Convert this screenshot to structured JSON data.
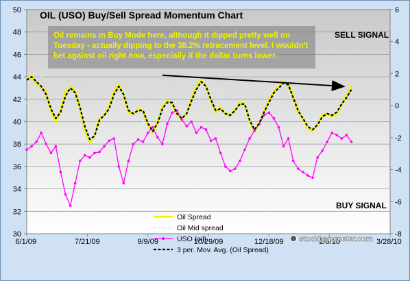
{
  "chart_data": {
    "type": "line",
    "title": "OIL (USO) Buy/Sell Spread Momentum Chart",
    "annotation_box": "Oil remains in Buy Mode here, although it dipped pretty well on Tuesday - actually dipping to the 38.2% retracement level.  I wouldn't bet against oil right now, especially if the dollar turns lower.",
    "annotation_lines": [
      "Oil remains in Buy Mode here, although it dipped pretty well on",
      "Tuesday - actually dipping to the 38.2% retracement level.  I wouldn't",
      "bet against oil right now, especially if the dollar turns lower."
    ],
    "sell_signal_label": "SELL SIGNAL",
    "buy_signal_label": "BUY SIGNAL",
    "watermark": "stockbarometer.com",
    "x_tick_labels": [
      "6/1/09",
      "7/21/09",
      "9/9/09",
      "10/29/09",
      "12/18/09",
      "2/6/10",
      "3/28/10"
    ],
    "x_range_days": [
      0,
      300
    ],
    "y_left_ticks": [
      "30",
      "32",
      "34",
      "36",
      "38",
      "40",
      "42",
      "44",
      "46",
      "48",
      "50"
    ],
    "y_left_range": [
      30,
      50
    ],
    "y_right_ticks": [
      "6",
      "4",
      "2",
      "0",
      "-2",
      "-4",
      "-6",
      "-8"
    ],
    "y_right_range": [
      -8,
      6
    ],
    "legend_position": "bottom-center",
    "grid": "horizontal",
    "series": [
      {
        "name": "Oil Spread",
        "axis": "right",
        "color": "#f2f200",
        "style": "solid",
        "x": [
          0,
          4,
          8,
          12,
          16,
          20,
          24,
          28,
          32,
          36,
          40,
          44,
          48,
          52,
          56,
          60,
          64,
          68,
          72,
          76,
          80,
          84,
          88,
          92,
          96,
          100,
          104,
          108,
          112,
          116,
          120,
          124,
          128,
          132,
          136,
          140,
          144,
          148,
          152,
          156,
          160,
          164,
          168,
          172,
          176,
          180,
          184,
          188,
          192,
          196,
          200,
          204,
          208,
          212,
          216,
          220,
          224,
          228,
          232,
          236,
          240,
          244,
          248,
          252,
          256,
          260,
          264,
          268
        ],
        "y": [
          1.7,
          1.9,
          1.3,
          1.2,
          0.8,
          -0.3,
          -1.0,
          -0.3,
          0.9,
          1.2,
          0.9,
          -0.2,
          -1.5,
          -2.3,
          -1.9,
          -0.8,
          -0.6,
          -0.1,
          0.9,
          1.3,
          0.7,
          -0.4,
          -0.5,
          -0.2,
          -0.3,
          -1.2,
          -1.7,
          -1.0,
          -0.1,
          0.3,
          0.2,
          -0.6,
          -0.8,
          -0.5,
          0.4,
          1.2,
          1.6,
          1.2,
          0.3,
          -0.4,
          -0.1,
          -0.5,
          -0.6,
          -0.3,
          0.2,
          0.1,
          -1.0,
          -1.6,
          -1.1,
          -0.4,
          0.3,
          0.9,
          1.2,
          1.5,
          1.4,
          0.5,
          -0.4,
          -0.8,
          -1.4,
          -1.6,
          -1.2,
          -0.6,
          -0.5,
          -0.7,
          -0.5,
          0.1,
          0.6,
          1.2
        ]
      },
      {
        "name": "Oil Mid spread",
        "axis": "right",
        "color": "#c8ecec",
        "style": "dashed",
        "x": [
          0,
          6,
          12,
          18,
          24,
          30,
          36,
          42,
          48,
          54,
          60,
          66,
          72,
          78,
          84,
          90,
          96,
          102,
          108,
          114,
          120,
          126,
          132,
          138,
          144,
          150,
          156,
          162,
          168,
          174,
          180,
          186,
          192,
          198,
          204,
          210,
          216,
          222,
          228,
          234,
          240,
          246,
          252,
          258,
          264,
          270
        ],
        "y": [
          0.1,
          0.9,
          1.8,
          2.3,
          2.4,
          1.7,
          0.8,
          -0.5,
          -1.8,
          -2.1,
          -1.3,
          -0.5,
          0.3,
          0.9,
          0.6,
          -0.4,
          -1.0,
          -0.7,
          -0.4,
          -0.5,
          -0.8,
          -0.6,
          -0.4,
          -0.3,
          0.6,
          1.5,
          1.2,
          0.2,
          -0.6,
          -0.4,
          -0.3,
          -0.8,
          -1.2,
          -0.6,
          0.3,
          1.2,
          1.6,
          1.2,
          0.2,
          -0.7,
          -1.1,
          -0.9,
          -0.8,
          -1.6,
          -1.7,
          0.0
        ]
      },
      {
        "name": "USO (oil)",
        "axis": "left",
        "color": "#ff00ff",
        "style": "solid-markers",
        "x": [
          0,
          4,
          8,
          12,
          16,
          20,
          24,
          28,
          32,
          36,
          40,
          44,
          48,
          52,
          56,
          60,
          64,
          68,
          72,
          76,
          80,
          84,
          88,
          92,
          96,
          100,
          104,
          108,
          112,
          116,
          120,
          124,
          128,
          132,
          136,
          140,
          144,
          148,
          152,
          156,
          160,
          164,
          168,
          172,
          176,
          180,
          184,
          188,
          192,
          196,
          200,
          204,
          208,
          212,
          216,
          220,
          224,
          228,
          232,
          236,
          240,
          244,
          248,
          252,
          256,
          260,
          264,
          268
        ],
        "y": [
          37.5,
          37.8,
          38.2,
          39.0,
          38.0,
          37.2,
          37.8,
          35.5,
          33.5,
          32.5,
          34.5,
          36.5,
          37.0,
          36.8,
          37.2,
          37.3,
          37.8,
          38.3,
          38.5,
          36.0,
          34.5,
          36.5,
          38.0,
          38.4,
          38.2,
          39.0,
          39.5,
          38.6,
          38.0,
          39.8,
          40.8,
          41.0,
          40.2,
          39.6,
          40.0,
          39.0,
          39.5,
          39.3,
          38.3,
          38.5,
          37.2,
          36.0,
          35.6,
          35.8,
          36.5,
          37.5,
          38.5,
          39.2,
          39.8,
          40.6,
          40.8,
          40.3,
          39.5,
          37.8,
          38.5,
          36.5,
          35.8,
          35.5,
          35.2,
          35.0,
          36.8,
          37.4,
          38.2,
          39.0,
          38.8,
          38.5,
          38.8,
          38.2
        ]
      },
      {
        "name": "3 per. Mov. Avg. (Oil Spread)",
        "axis": "right",
        "color": "#000000",
        "style": "dashed",
        "x": [
          0,
          4,
          8,
          12,
          16,
          20,
          24,
          28,
          32,
          36,
          40,
          44,
          48,
          52,
          56,
          60,
          64,
          68,
          72,
          76,
          80,
          84,
          88,
          92,
          96,
          100,
          104,
          108,
          112,
          116,
          120,
          124,
          128,
          132,
          136,
          140,
          144,
          148,
          152,
          156,
          160,
          164,
          168,
          172,
          176,
          180,
          184,
          188,
          192,
          196,
          200,
          204,
          208,
          212,
          216,
          220,
          224,
          228,
          232,
          236,
          240,
          244,
          248,
          252,
          256,
          260,
          264,
          268
        ],
        "y": [
          1.6,
          1.8,
          1.5,
          1.2,
          0.7,
          -0.2,
          -0.8,
          -0.4,
          0.6,
          1.1,
          0.8,
          -0.1,
          -1.3,
          -2.1,
          -1.9,
          -0.9,
          -0.6,
          -0.2,
          0.7,
          1.2,
          0.7,
          -0.3,
          -0.5,
          -0.3,
          -0.3,
          -1.1,
          -1.6,
          -1.1,
          -0.2,
          0.2,
          0.2,
          -0.5,
          -0.8,
          -0.5,
          0.3,
          1.0,
          1.5,
          1.2,
          0.4,
          -0.3,
          -0.2,
          -0.5,
          -0.6,
          -0.3,
          0.1,
          0.1,
          -0.9,
          -1.5,
          -1.1,
          -0.4,
          0.2,
          0.8,
          1.1,
          1.4,
          1.3,
          0.5,
          -0.3,
          -0.8,
          -1.3,
          -1.5,
          -1.2,
          -0.7,
          -0.5,
          -0.6,
          -0.4,
          0.1,
          0.5,
          1.0
        ]
      }
    ],
    "trend_arrow": {
      "from": {
        "x": 112,
        "y_right": 1.9
      },
      "to": {
        "x": 262,
        "y_right": 1.2
      }
    }
  }
}
